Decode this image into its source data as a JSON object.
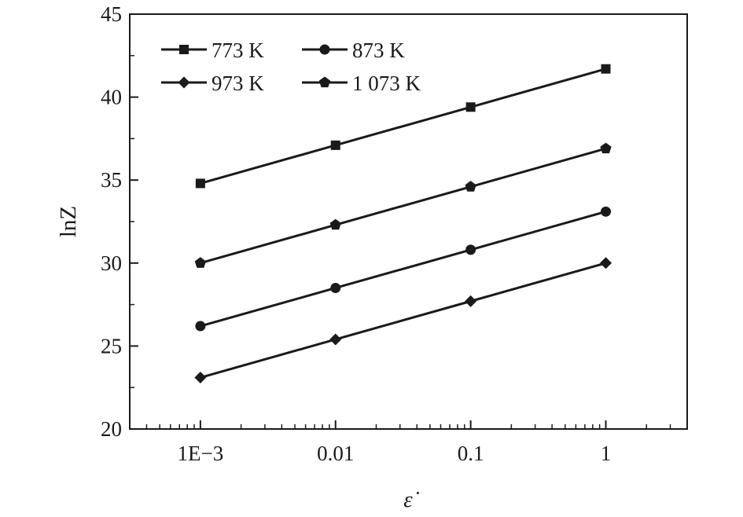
{
  "chart_data": {
    "type": "line",
    "xlabel": "ε̇",
    "ylabel": "lnZ",
    "x_scale": "log",
    "xlim": [
      0.0003,
      4
    ],
    "ylim": [
      20,
      45
    ],
    "x_ticks": [
      0.001,
      0.01,
      0.1,
      1
    ],
    "x_tick_labels": [
      "1E−3",
      "0.01",
      "0.1",
      "1"
    ],
    "y_ticks": [
      20,
      25,
      30,
      35,
      40,
      45
    ],
    "y_tick_labels": [
      "20",
      "25",
      "30",
      "35",
      "40",
      "45"
    ],
    "grid": false,
    "legend_position": "top-left",
    "x": [
      0.001,
      0.01,
      0.1,
      1
    ],
    "series": [
      {
        "name": "773 K",
        "marker": "square",
        "values": [
          34.8,
          37.1,
          39.4,
          41.7
        ]
      },
      {
        "name": "873 K",
        "marker": "circle",
        "values": [
          26.2,
          28.5,
          30.8,
          33.1
        ]
      },
      {
        "name": "973 K",
        "marker": "diamond",
        "values": [
          23.1,
          25.4,
          27.7,
          30.0
        ]
      },
      {
        "name": "1 073 K",
        "marker": "pentagon",
        "values": [
          30.0,
          32.3,
          34.6,
          36.9
        ]
      }
    ],
    "line_color": "#1a1a1a"
  }
}
